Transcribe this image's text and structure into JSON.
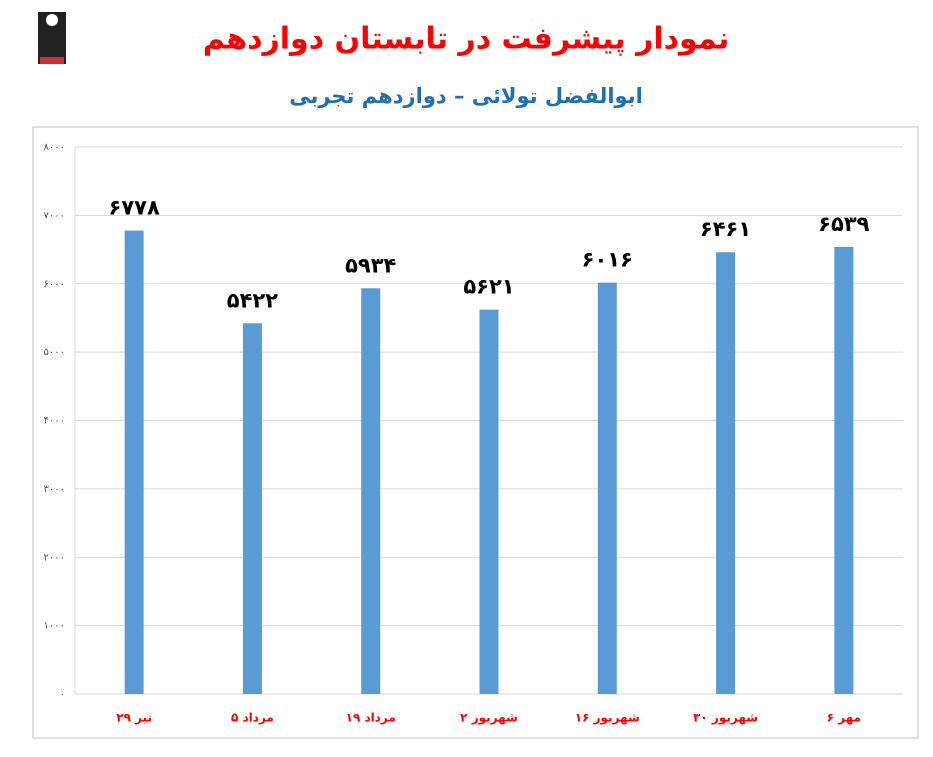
{
  "chart_data": {
    "type": "bar",
    "title": "نمودار پیشرفت در تابستان دوازدهم",
    "subtitle": "ابوالفضل تولائی – دوازدهم تجربی",
    "categories": [
      "۲۹ تیر",
      "۵ مرداد",
      "۱۹ مرداد",
      "۲ شهریور",
      "۱۶ شهریور",
      "۳۰ شهریور",
      "۶ مهر"
    ],
    "values": [
      6778,
      5422,
      5934,
      5621,
      6016,
      6461,
      6539
    ],
    "value_labels": [
      "۶۷۷۸",
      "۵۴۲۲",
      "۵۹۳۴",
      "۵۶۲۱",
      "۶۰۱۶",
      "۶۴۶۱",
      "۶۵۳۹"
    ],
    "color": "#5b9bd5",
    "ylim": [
      0,
      8000
    ],
    "yticks": [
      {
        "value": 0,
        "label": "۰"
      },
      {
        "value": 1000,
        "label": "۱۰۰۰"
      },
      {
        "value": 2000,
        "label": "۲۰۰۰"
      },
      {
        "value": 3000,
        "label": "۳۰۰۰"
      },
      {
        "value": 4000,
        "label": "۴۰۰۰"
      },
      {
        "value": 5000,
        "label": "۵۰۰۰"
      },
      {
        "value": 6000,
        "label": "۶۰۰۰"
      },
      {
        "value": 7000,
        "label": "۷۰۰۰"
      },
      {
        "value": 8000,
        "label": "۸۰۰۰"
      }
    ],
    "grid": true
  }
}
